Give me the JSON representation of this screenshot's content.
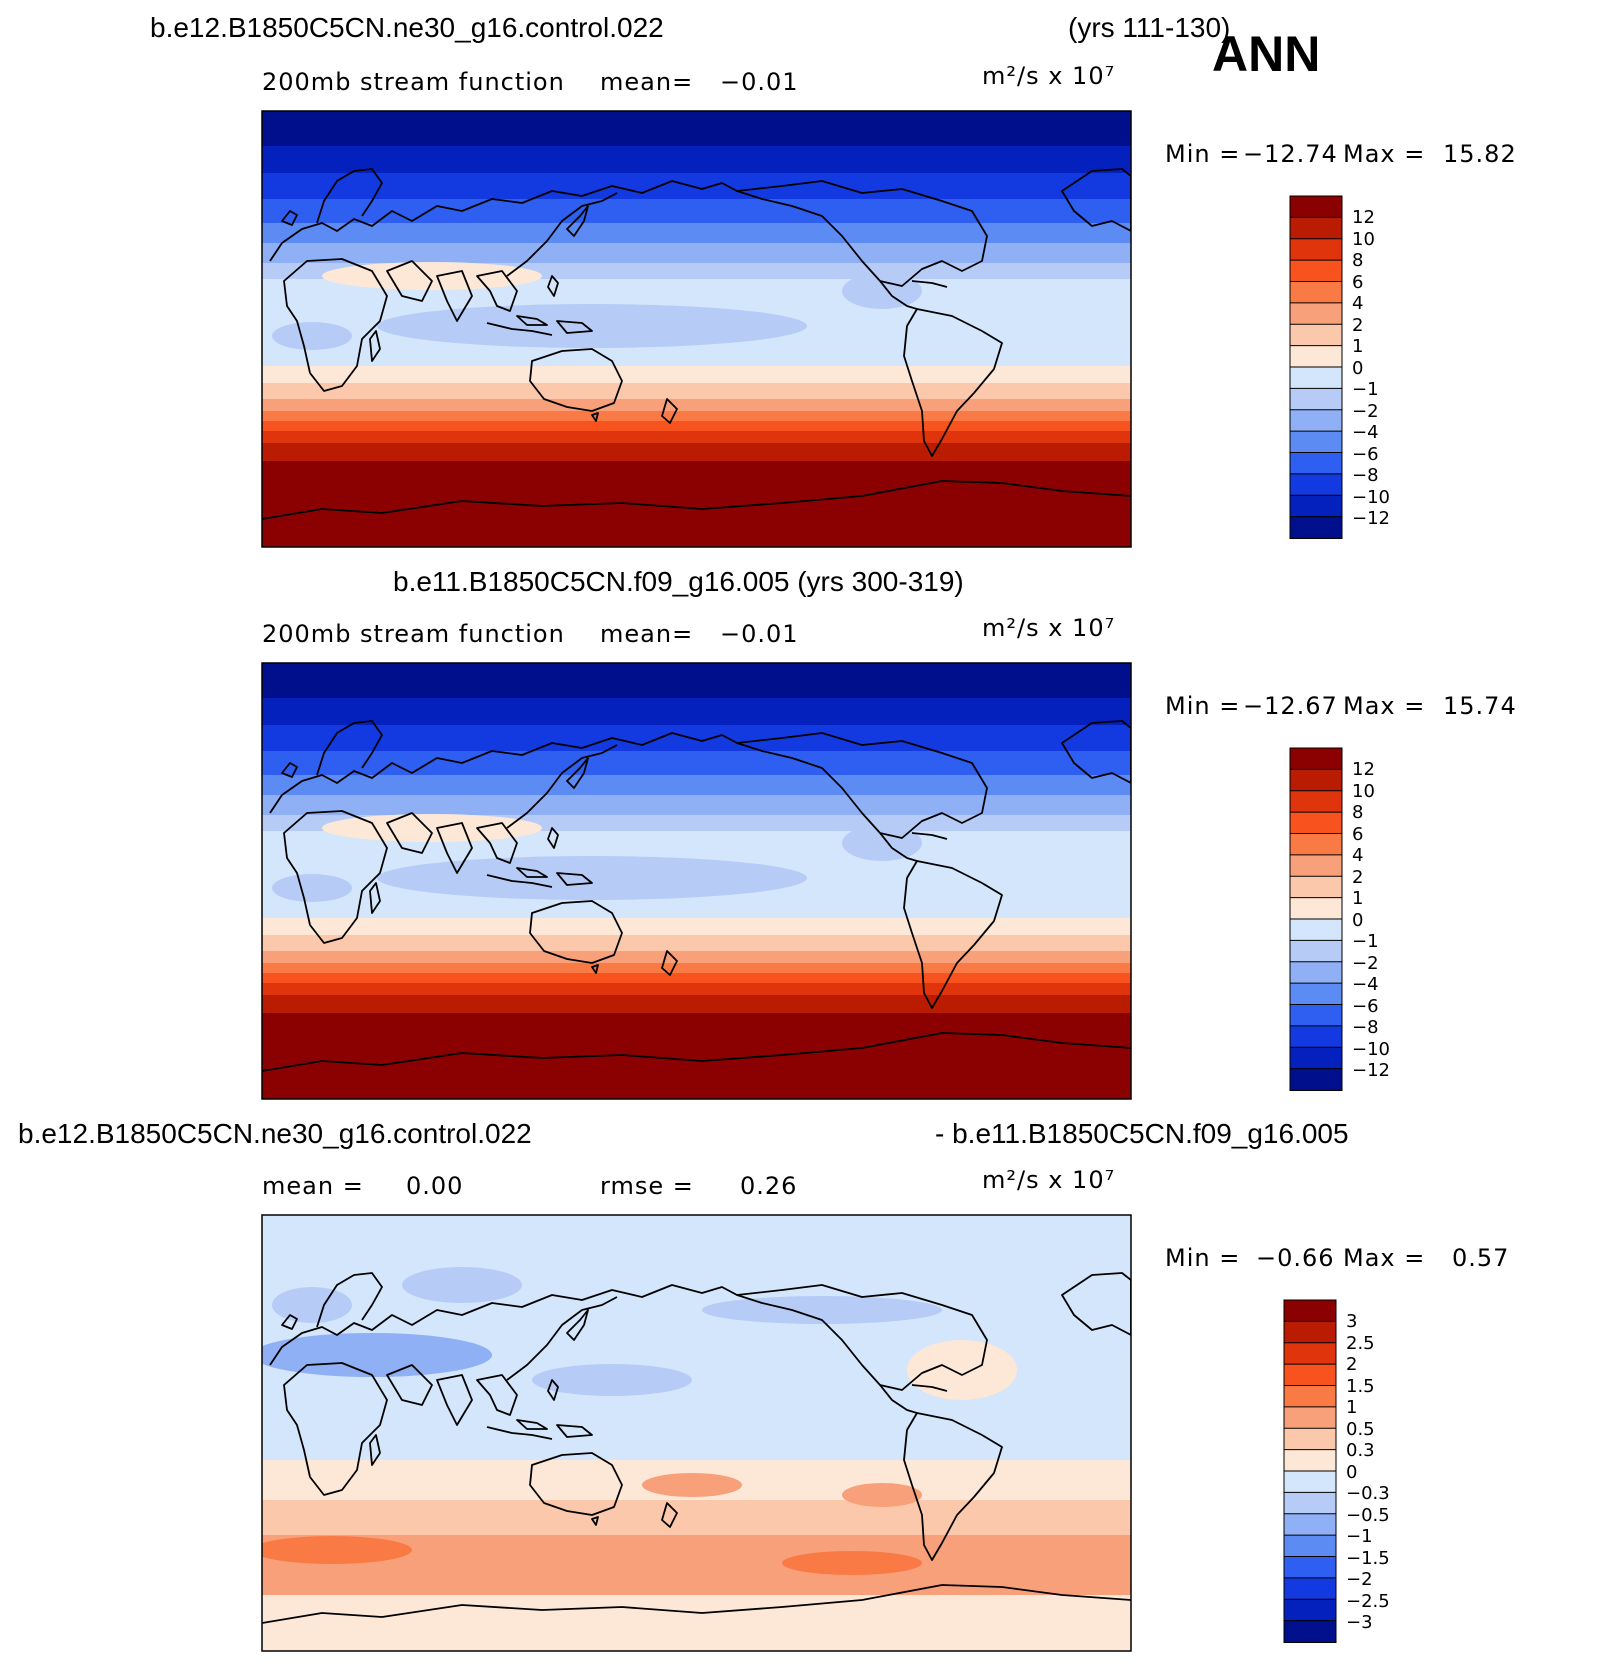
{
  "season": "ANN",
  "panels": [
    {
      "case_left": "b.e12.B1850C5CN.ne30_g16.control.022",
      "case_right": "(yrs 111-130)",
      "subtitle_left": "200mb stream function",
      "stat1_label": "mean=",
      "stat1_value": "−0.01",
      "stat2_label": "",
      "stat2_value": "",
      "units": "m²/s x 10⁷",
      "min_label": "Min =",
      "min_value": "−12.74",
      "max_label": "Max =",
      "max_value": "15.82",
      "colorbar_labels": [
        "12",
        "10",
        "8",
        "6",
        "4",
        "2",
        "1",
        "0",
        "−1",
        "−2",
        "−4",
        "−6",
        "−8",
        "−10",
        "−12"
      ],
      "colorbar_colors": [
        "#8b0000",
        "#b91c00",
        "#e0340d",
        "#f8521e",
        "#fa7a45",
        "#f8a07a",
        "#fcc8ab",
        "#fde8d8",
        "#d4e6fb",
        "#b6ccf7",
        "#8fb0f5",
        "#5c8bf3",
        "#2e5ff0",
        "#123ae0",
        "#0521bd",
        "#00108c"
      ]
    },
    {
      "case_left": "b.e11.B1850C5CN.f09_g16.005 (yrs 300-319)",
      "case_right": "",
      "subtitle_left": "200mb stream function",
      "stat1_label": "mean=",
      "stat1_value": "−0.01",
      "stat2_label": "",
      "stat2_value": "",
      "units": "m²/s x 10⁷",
      "min_label": "Min =",
      "min_value": "−12.67",
      "max_label": "Max =",
      "max_value": "15.74",
      "colorbar_labels": [
        "12",
        "10",
        "8",
        "6",
        "4",
        "2",
        "1",
        "0",
        "−1",
        "−2",
        "−4",
        "−6",
        "−8",
        "−10",
        "−12"
      ],
      "colorbar_colors": [
        "#8b0000",
        "#b91c00",
        "#e0340d",
        "#f8521e",
        "#fa7a45",
        "#f8a07a",
        "#fcc8ab",
        "#fde8d8",
        "#d4e6fb",
        "#b6ccf7",
        "#8fb0f5",
        "#5c8bf3",
        "#2e5ff0",
        "#123ae0",
        "#0521bd",
        "#00108c"
      ]
    },
    {
      "case_left": "b.e12.B1850C5CN.ne30_g16.control.022",
      "case_right": "- b.e11.B1850C5CN.f09_g16.005",
      "subtitle_left": "",
      "stat1_label": "mean =",
      "stat1_value": "0.00",
      "stat2_label": "rmse =",
      "stat2_value": "0.26",
      "units": "m²/s x 10⁷",
      "min_label": "Min =",
      "min_value": "−0.66",
      "max_label": "Max =",
      "max_value": "0.57",
      "colorbar_labels": [
        "3",
        "2.5",
        "2",
        "1.5",
        "1",
        "0.5",
        "0.3",
        "0",
        "−0.3",
        "−0.5",
        "−1",
        "−1.5",
        "−2",
        "−2.5",
        "−3"
      ],
      "colorbar_colors": [
        "#8b0000",
        "#b91c00",
        "#e0340d",
        "#f8521e",
        "#fa7a45",
        "#f8a07a",
        "#fcc8ab",
        "#fde8d8",
        "#d4e6fb",
        "#b6ccf7",
        "#8fb0f5",
        "#5c8bf3",
        "#2e5ff0",
        "#123ae0",
        "#0521bd",
        "#00108c"
      ]
    }
  ]
}
